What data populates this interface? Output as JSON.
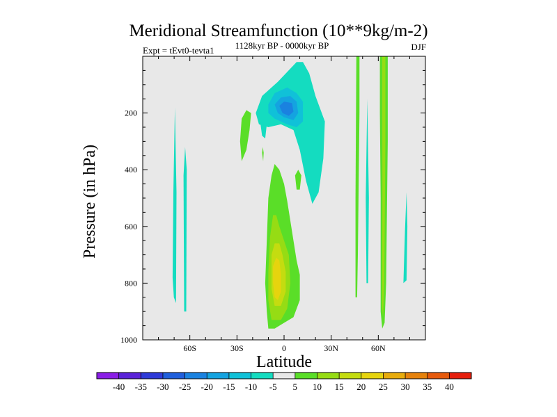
{
  "chart_data": {
    "type": "contour",
    "title": "Meridional Streamfunction (10**9kg/m-2)",
    "subtitle": "1128kyr BP - 0000kyr BP",
    "left_string": "Expt = tEvt0-tevta1",
    "right_string": "DJF",
    "xlabel": "Latitude",
    "ylabel": "Pressure (in hPa)",
    "xlim": [
      -90,
      90
    ],
    "ylim": [
      1000,
      0
    ],
    "x_ticks": [
      {
        "value": -60,
        "label": "60S"
      },
      {
        "value": -30,
        "label": "30S"
      },
      {
        "value": 0,
        "label": "0"
      },
      {
        "value": 30,
        "label": "30N"
      },
      {
        "value": 60,
        "label": "60N"
      }
    ],
    "y_ticks": [
      {
        "value": 200,
        "label": "200"
      },
      {
        "value": 400,
        "label": "400"
      },
      {
        "value": 600,
        "label": "600"
      },
      {
        "value": 800,
        "label": "800"
      },
      {
        "value": 1000,
        "label": "1000"
      }
    ],
    "colorbar": {
      "levels": [
        -40,
        -35,
        -30,
        -25,
        -20,
        -15,
        -10,
        -5,
        5,
        10,
        15,
        20,
        25,
        30,
        35,
        40
      ],
      "labels": [
        "-40",
        "-35",
        "-30",
        "-25",
        "-20",
        "-15",
        "-10",
        "-5",
        "5",
        "10",
        "15",
        "20",
        "25",
        "30",
        "35",
        "40"
      ],
      "colors": [
        "#8a1ee6",
        "#5a22d8",
        "#2e3ad8",
        "#1f5fdc",
        "#1a82e0",
        "#14a3e0",
        "#10c1d8",
        "#14dcc0",
        "#e8e8e8",
        "#5ade28",
        "#96dc14",
        "#c4dc10",
        "#e6d40e",
        "#e8ac0c",
        "#e6820c",
        "#e65a0c",
        "#e61e0c"
      ]
    },
    "contours": [
      {
        "name": "lobe-70s",
        "level": -5,
        "points": [
          [
            -71,
            780
          ],
          [
            -70.5,
            480
          ],
          [
            -69.5,
            180
          ],
          [
            -68.5,
            480
          ],
          [
            -68.8,
            870
          ],
          [
            -70.2,
            850
          ]
        ]
      },
      {
        "name": "lobe-70s-b",
        "level": -5,
        "points": [
          [
            -64,
            420
          ],
          [
            -63,
            320
          ],
          [
            -62,
            400
          ],
          [
            -62.3,
            900
          ],
          [
            -63.6,
            900
          ]
        ]
      },
      {
        "name": "upper-cell-outer",
        "level": -5,
        "points": [
          [
            -18,
            200
          ],
          [
            -14,
            140
          ],
          [
            -4,
            90
          ],
          [
            8,
            20
          ],
          [
            12,
            20
          ],
          [
            16,
            60
          ],
          [
            20,
            140
          ],
          [
            26,
            230
          ],
          [
            25,
            360
          ],
          [
            22,
            480
          ],
          [
            18,
            520
          ],
          [
            14,
            440
          ],
          [
            10,
            330
          ],
          [
            6,
            260
          ],
          [
            -2,
            240
          ],
          [
            -10,
            250
          ],
          [
            -16,
            240
          ]
        ]
      },
      {
        "name": "upper-cell-mid",
        "level": -10,
        "points": [
          [
            -10,
            170
          ],
          [
            -6,
            130
          ],
          [
            2,
            110
          ],
          [
            8,
            130
          ],
          [
            12,
            160
          ],
          [
            12,
            230
          ],
          [
            8,
            250
          ],
          [
            2,
            240
          ],
          [
            -6,
            220
          ],
          [
            -10,
            200
          ]
        ]
      },
      {
        "name": "upper-cell-core",
        "level": -15,
        "points": [
          [
            -6,
            170
          ],
          [
            -2,
            145
          ],
          [
            4,
            140
          ],
          [
            8,
            160
          ],
          [
            9,
            200
          ],
          [
            6,
            225
          ],
          [
            0,
            215
          ],
          [
            -4,
            200
          ]
        ]
      },
      {
        "name": "upper-cell-inner",
        "level": -20,
        "points": [
          [
            -3,
            175
          ],
          [
            0,
            160
          ],
          [
            5,
            165
          ],
          [
            6,
            195
          ],
          [
            3,
            210
          ],
          [
            -1,
            200
          ]
        ]
      },
      {
        "name": "cyan-25s-lobe",
        "level": -5,
        "points": [
          [
            -16,
            200
          ],
          [
            -14,
            180
          ],
          [
            -12,
            180
          ],
          [
            -11,
            240
          ],
          [
            -12,
            290
          ],
          [
            -14,
            280
          ],
          [
            -15,
            240
          ]
        ]
      },
      {
        "name": "right-cyan-45n",
        "level": -5,
        "points": [
          [
            52,
            500
          ],
          [
            53,
            150
          ],
          [
            54,
            500
          ],
          [
            53.5,
            800
          ],
          [
            52.5,
            800
          ]
        ]
      },
      {
        "name": "right-cyan-80n",
        "level": -5,
        "points": [
          [
            76,
            800
          ],
          [
            77,
            610
          ],
          [
            78,
            480
          ],
          [
            78.5,
            600
          ],
          [
            78,
            790
          ]
        ]
      },
      {
        "name": "green-neg-25s",
        "level": 5,
        "points": [
          [
            -28,
            300
          ],
          [
            -27,
            220
          ],
          [
            -24,
            190
          ],
          [
            -21,
            200
          ],
          [
            -22,
            260
          ],
          [
            -24,
            330
          ],
          [
            -27,
            370
          ]
        ]
      },
      {
        "name": "green-small-20s",
        "level": 5,
        "points": [
          [
            -14,
            340
          ],
          [
            -13.5,
            320
          ],
          [
            -13,
            340
          ],
          [
            -13.3,
            370
          ]
        ]
      },
      {
        "name": "green-small-10n",
        "level": 5,
        "points": [
          [
            7,
            420
          ],
          [
            9,
            400
          ],
          [
            11,
            420
          ],
          [
            10,
            470
          ],
          [
            8,
            470
          ]
        ]
      },
      {
        "name": "hadley-10",
        "level": 5,
        "points": [
          [
            -10,
            500
          ],
          [
            -8,
            420
          ],
          [
            -6,
            380
          ],
          [
            -3,
            400
          ],
          [
            0,
            450
          ],
          [
            2,
            510
          ],
          [
            4,
            580
          ],
          [
            6,
            650
          ],
          [
            8,
            720
          ],
          [
            10,
            770
          ],
          [
            10,
            860
          ],
          [
            6,
            920
          ],
          [
            0,
            940
          ],
          [
            -6,
            960
          ],
          [
            -10,
            960
          ],
          [
            -11,
            900
          ],
          [
            -12,
            800
          ],
          [
            -11,
            650
          ]
        ]
      },
      {
        "name": "hadley-15",
        "level": 10,
        "points": [
          [
            -9,
            640
          ],
          [
            -7,
            560
          ],
          [
            -5,
            560
          ],
          [
            -3,
            600
          ],
          [
            0,
            650
          ],
          [
            3,
            700
          ],
          [
            4,
            800
          ],
          [
            2,
            890
          ],
          [
            -2,
            930
          ],
          [
            -8,
            930
          ],
          [
            -10,
            860
          ],
          [
            -10,
            760
          ]
        ]
      },
      {
        "name": "hadley-20",
        "level": 15,
        "points": [
          [
            -8,
            700
          ],
          [
            -6,
            660
          ],
          [
            -3,
            660
          ],
          [
            -1,
            700
          ],
          [
            1,
            760
          ],
          [
            1,
            830
          ],
          [
            -2,
            880
          ],
          [
            -6,
            880
          ],
          [
            -8,
            820
          ]
        ]
      },
      {
        "name": "hadley-25",
        "level": 20,
        "points": [
          [
            -7,
            740
          ],
          [
            -5,
            710
          ],
          [
            -3,
            720
          ],
          [
            -2,
            770
          ],
          [
            -2,
            830
          ],
          [
            -4,
            860
          ],
          [
            -6,
            850
          ],
          [
            -7,
            800
          ]
        ]
      },
      {
        "name": "green-45n",
        "level": 5,
        "points": [
          [
            46,
            0
          ],
          [
            48,
            0
          ],
          [
            48,
            200
          ],
          [
            47,
            700
          ],
          [
            46.5,
            850
          ],
          [
            45.5,
            850
          ],
          [
            45.5,
            500
          ],
          [
            45.8,
            200
          ]
        ]
      },
      {
        "name": "green-55n-outer",
        "level": 5,
        "points": [
          [
            61,
            0
          ],
          [
            66,
            0
          ],
          [
            66,
            300
          ],
          [
            65,
            800
          ],
          [
            64,
            940
          ],
          [
            62.5,
            960
          ],
          [
            61.5,
            900
          ],
          [
            61.5,
            500
          ],
          [
            61,
            200
          ]
        ]
      },
      {
        "name": "green-55n-inner",
        "level": 10,
        "points": [
          [
            62.5,
            0
          ],
          [
            64.5,
            0
          ],
          [
            64.5,
            300
          ],
          [
            63.8,
            800
          ],
          [
            63,
            920
          ],
          [
            62.4,
            880
          ],
          [
            62.6,
            500
          ],
          [
            62.5,
            200
          ]
        ]
      }
    ]
  }
}
